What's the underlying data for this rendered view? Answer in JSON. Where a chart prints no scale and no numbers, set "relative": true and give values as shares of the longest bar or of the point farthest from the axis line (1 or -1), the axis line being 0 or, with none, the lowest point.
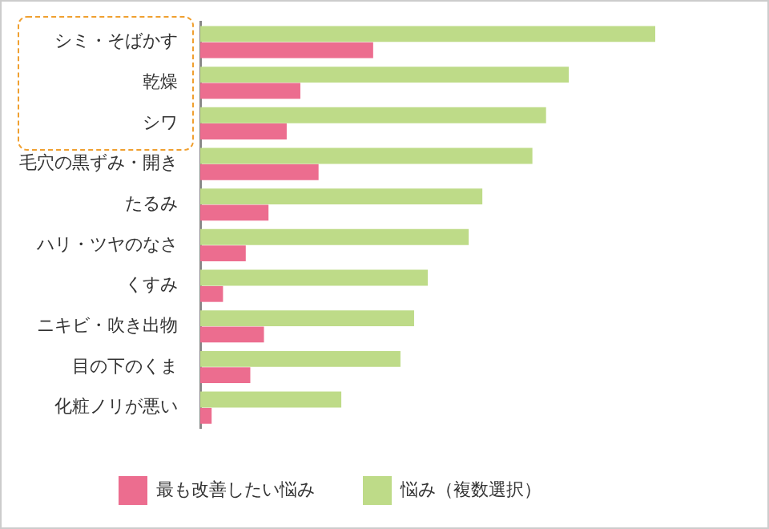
{
  "chart_data": {
    "type": "bar",
    "orientation": "horizontal",
    "relative": true,
    "legend": "bottom",
    "categories": [
      "シミ・そばかす",
      "乾燥",
      "シワ",
      "毛穴の黒ずみ・開き",
      "たるみ",
      "ハリ・ツヤのなさ",
      "くすみ",
      "ニキビ・吹き出物",
      "目の下のくま",
      "化粧ノリが悪い"
    ],
    "series": [
      {
        "name": "最も改善したい悩み",
        "color": "#ec6d8f",
        "values": [
          0.38,
          0.22,
          0.19,
          0.26,
          0.15,
          0.1,
          0.05,
          0.14,
          0.11,
          0.025
        ]
      },
      {
        "name": "悩み（複数選択）",
        "color": "#bedb88",
        "values": [
          1,
          0.81,
          0.76,
          0.73,
          0.62,
          0.59,
          0.5,
          0.47,
          0.44,
          0.31
        ]
      }
    ]
  }
}
